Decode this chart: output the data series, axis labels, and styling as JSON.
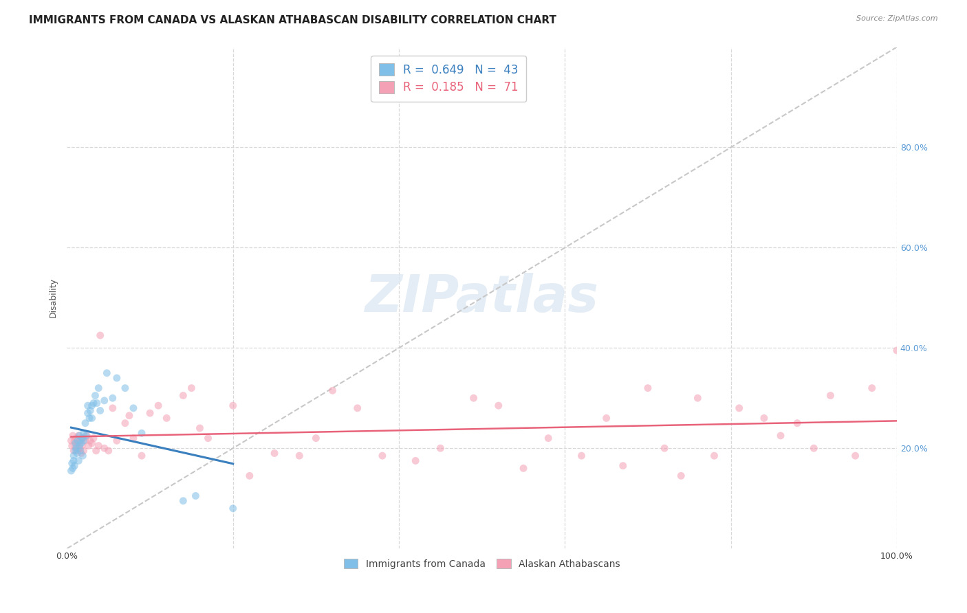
{
  "title": "IMMIGRANTS FROM CANADA VS ALASKAN ATHABASCAN DISABILITY CORRELATION CHART",
  "source": "Source: ZipAtlas.com",
  "ylabel": "Disability",
  "blue_color": "#7fbfe8",
  "pink_color": "#f4a0b5",
  "blue_line_color": "#3a7fbe",
  "pink_line_color": "#e8637a",
  "diag_color": "#c8c8c8",
  "legend_blue_label": "R =  0.649   N =  43",
  "legend_pink_label": "R =  0.185   N =  71",
  "legend_bottom_blue": "Immigrants from Canada",
  "legend_bottom_pink": "Alaskan Athabascans",
  "background_color": "#ffffff",
  "grid_color": "#d8d8d8",
  "title_fontsize": 11,
  "label_fontsize": 9,
  "tick_fontsize": 9,
  "marker_size": 62,
  "marker_alpha": 0.55,
  "blue_scatter_x": [
    0.005,
    0.006,
    0.007,
    0.008,
    0.008,
    0.009,
    0.01,
    0.01,
    0.011,
    0.012,
    0.013,
    0.014,
    0.015,
    0.015,
    0.016,
    0.017,
    0.018,
    0.019,
    0.02,
    0.02,
    0.022,
    0.023,
    0.025,
    0.025,
    0.027,
    0.028,
    0.03,
    0.03,
    0.032,
    0.034,
    0.036,
    0.038,
    0.04,
    0.045,
    0.048,
    0.055,
    0.06,
    0.07,
    0.08,
    0.09,
    0.14,
    0.155,
    0.2
  ],
  "blue_scatter_y": [
    0.155,
    0.17,
    0.16,
    0.175,
    0.185,
    0.165,
    0.195,
    0.21,
    0.2,
    0.19,
    0.215,
    0.175,
    0.205,
    0.225,
    0.195,
    0.21,
    0.22,
    0.185,
    0.215,
    0.23,
    0.25,
    0.225,
    0.27,
    0.285,
    0.26,
    0.275,
    0.26,
    0.285,
    0.29,
    0.305,
    0.29,
    0.32,
    0.275,
    0.295,
    0.35,
    0.3,
    0.34,
    0.32,
    0.28,
    0.23,
    0.095,
    0.105,
    0.08
  ],
  "pink_scatter_x": [
    0.005,
    0.006,
    0.007,
    0.008,
    0.009,
    0.01,
    0.011,
    0.012,
    0.013,
    0.014,
    0.015,
    0.016,
    0.017,
    0.018,
    0.019,
    0.02,
    0.022,
    0.024,
    0.026,
    0.028,
    0.03,
    0.032,
    0.035,
    0.038,
    0.04,
    0.045,
    0.05,
    0.055,
    0.06,
    0.07,
    0.075,
    0.08,
    0.09,
    0.1,
    0.11,
    0.12,
    0.14,
    0.15,
    0.16,
    0.17,
    0.2,
    0.22,
    0.25,
    0.28,
    0.3,
    0.32,
    0.35,
    0.38,
    0.42,
    0.45,
    0.49,
    0.52,
    0.55,
    0.58,
    0.62,
    0.65,
    0.67,
    0.7,
    0.72,
    0.74,
    0.76,
    0.78,
    0.81,
    0.84,
    0.86,
    0.88,
    0.9,
    0.92,
    0.95,
    0.97,
    1.0
  ],
  "pink_scatter_y": [
    0.215,
    0.205,
    0.225,
    0.195,
    0.215,
    0.205,
    0.22,
    0.195,
    0.21,
    0.225,
    0.2,
    0.215,
    0.19,
    0.205,
    0.22,
    0.195,
    0.215,
    0.225,
    0.205,
    0.215,
    0.21,
    0.22,
    0.195,
    0.205,
    0.425,
    0.2,
    0.195,
    0.28,
    0.215,
    0.25,
    0.265,
    0.22,
    0.185,
    0.27,
    0.285,
    0.26,
    0.305,
    0.32,
    0.24,
    0.22,
    0.285,
    0.145,
    0.19,
    0.185,
    0.22,
    0.315,
    0.28,
    0.185,
    0.175,
    0.2,
    0.3,
    0.285,
    0.16,
    0.22,
    0.185,
    0.26,
    0.165,
    0.32,
    0.2,
    0.145,
    0.3,
    0.185,
    0.28,
    0.26,
    0.225,
    0.25,
    0.2,
    0.305,
    0.185,
    0.32,
    0.395
  ]
}
